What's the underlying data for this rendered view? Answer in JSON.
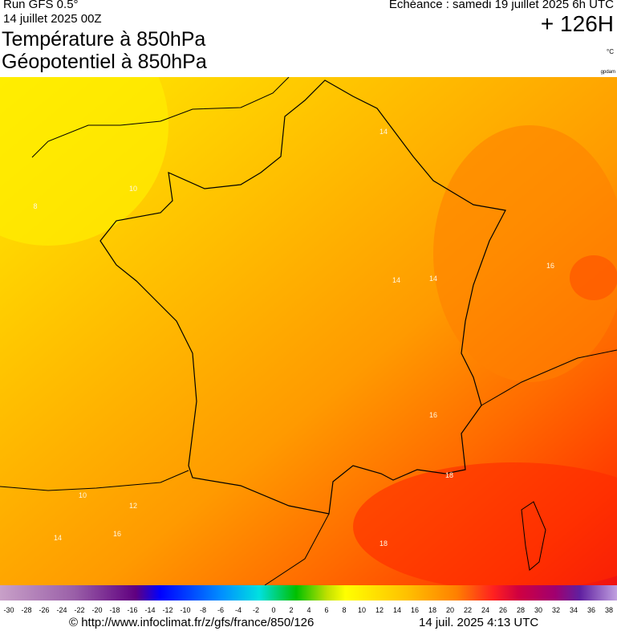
{
  "header": {
    "run": "Run GFS 0.5°",
    "date": "14 juillet 2025 00Z",
    "title": "Température à 850hPa",
    "subtitle": "Géopotentiel à 850hPa",
    "valid": "Echéance : samedi 19 juillet 2025 6h UTC",
    "lead": "+ 126H",
    "unit": "°C",
    "credit": "gpdam"
  },
  "map": {
    "contour_labels": [
      14,
      10,
      8,
      16,
      14,
      14,
      16,
      18,
      10,
      12,
      16,
      14,
      18
    ]
  },
  "colorbar": {
    "labels": [
      -30,
      -28,
      -26,
      -24,
      -22,
      -20,
      -18,
      -16,
      -14,
      -12,
      -10,
      -8,
      -6,
      -4,
      -2,
      0,
      2,
      4,
      6,
      8,
      10,
      12,
      14,
      16,
      18,
      20,
      22,
      24,
      26,
      28,
      30,
      32,
      34,
      36,
      38
    ]
  },
  "footer": {
    "url": "© http://www.infoclimat.fr/z/gfs/france/850/126",
    "timestamp": "14 juil. 2025  4:13 UTC"
  }
}
